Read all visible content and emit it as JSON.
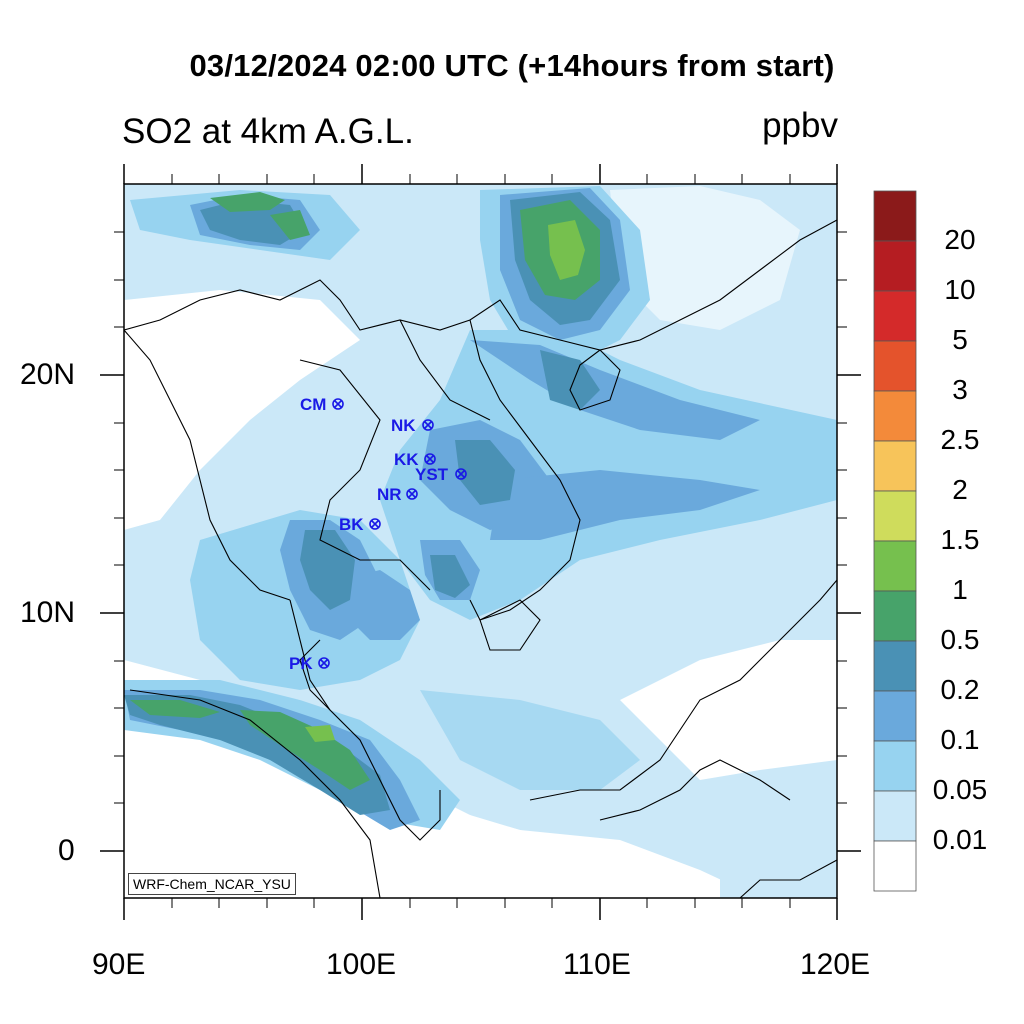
{
  "title": "03/12/2024 02:00 UTC (+14hours from start)",
  "subtitle_left": "SO2 at 4km A.G.L.",
  "subtitle_right": "ppbv",
  "credit": "WRF-Chem_NCAR_YSU",
  "axes": {
    "x_ticks": [
      "90E",
      "100E",
      "110E",
      "120E"
    ],
    "y_ticks": [
      "20N",
      "10N",
      "0"
    ]
  },
  "colorbar": {
    "levels": [
      "20",
      "10",
      "5",
      "3",
      "2.5",
      "2",
      "1.5",
      "1",
      "0.5",
      "0.2",
      "0.1",
      "0.05",
      "0.01"
    ],
    "colors": [
      "#8b1a1a",
      "#b51d22",
      "#d42a2a",
      "#e4532c",
      "#f38a3a",
      "#f7c45a",
      "#cfdc5c",
      "#76c04e",
      "#47a36a",
      "#4a91b5",
      "#6aa9dc",
      "#97d3f0",
      "#cbe8f8",
      "#ffffff"
    ]
  },
  "stations": [
    {
      "code": "CM"
    },
    {
      "code": "NK"
    },
    {
      "code": "KK"
    },
    {
      "code": "YST"
    },
    {
      "code": "NR"
    },
    {
      "code": "BK"
    },
    {
      "code": "PK"
    }
  ]
}
